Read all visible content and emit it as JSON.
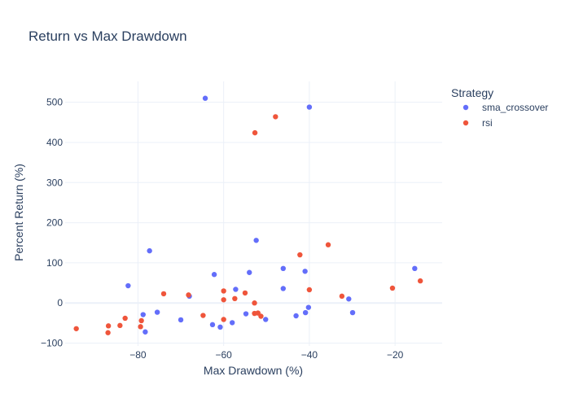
{
  "chart_data": {
    "type": "scatter",
    "title": "Return vs Max Drawdown",
    "xlabel": "Max Drawdown (%)",
    "ylabel": "Percent Return (%)",
    "xlim": [
      -97,
      -9
    ],
    "ylim": [
      -107,
      552
    ],
    "x_ticks": [
      -80,
      -60,
      -40,
      -20
    ],
    "x_tick_labels": [
      "−80",
      "−60",
      "−40",
      "−20"
    ],
    "y_ticks": [
      -100,
      0,
      100,
      200,
      300,
      400,
      500
    ],
    "y_tick_labels": [
      "−100",
      "0",
      "100",
      "200",
      "300",
      "400",
      "500"
    ],
    "grid": true,
    "legend": {
      "title": "Strategy",
      "placement": "top-right"
    },
    "series": [
      {
        "name": "sma_crossover",
        "color": "#636efa",
        "points": [
          {
            "x": -64.3,
            "y": 510
          },
          {
            "x": -40.0,
            "y": 488
          },
          {
            "x": -77.3,
            "y": 130
          },
          {
            "x": -52.4,
            "y": 156
          },
          {
            "x": -82.3,
            "y": 43
          },
          {
            "x": -62.2,
            "y": 71
          },
          {
            "x": -54.0,
            "y": 76
          },
          {
            "x": -46.1,
            "y": 86
          },
          {
            "x": -41.0,
            "y": 79
          },
          {
            "x": -15.4,
            "y": 86
          },
          {
            "x": -46.1,
            "y": 36
          },
          {
            "x": -57.2,
            "y": 34
          },
          {
            "x": -68.0,
            "y": 17
          },
          {
            "x": -75.5,
            "y": -23
          },
          {
            "x": -78.8,
            "y": -29
          },
          {
            "x": -70.0,
            "y": -42
          },
          {
            "x": -62.6,
            "y": -54
          },
          {
            "x": -60.8,
            "y": -60
          },
          {
            "x": -58.0,
            "y": -49
          },
          {
            "x": -54.8,
            "y": -27
          },
          {
            "x": -50.2,
            "y": -41
          },
          {
            "x": -43.1,
            "y": -32
          },
          {
            "x": -40.9,
            "y": -24
          },
          {
            "x": -40.2,
            "y": -11
          },
          {
            "x": -30.8,
            "y": 10
          },
          {
            "x": -29.9,
            "y": -24
          },
          {
            "x": -78.3,
            "y": -72
          }
        ]
      },
      {
        "name": "rsi",
        "color": "#ef553b",
        "points": [
          {
            "x": -52.7,
            "y": 424
          },
          {
            "x": -47.9,
            "y": 464
          },
          {
            "x": -42.2,
            "y": 120
          },
          {
            "x": -35.6,
            "y": 145
          },
          {
            "x": -74.0,
            "y": 23
          },
          {
            "x": -68.2,
            "y": 20
          },
          {
            "x": -60.0,
            "y": 30
          },
          {
            "x": -60.0,
            "y": 8
          },
          {
            "x": -57.4,
            "y": 11
          },
          {
            "x": -55.0,
            "y": 25
          },
          {
            "x": -52.8,
            "y": 0
          },
          {
            "x": -40.0,
            "y": 33
          },
          {
            "x": -32.4,
            "y": 17
          },
          {
            "x": -20.6,
            "y": 37
          },
          {
            "x": -14.1,
            "y": 55
          },
          {
            "x": -64.8,
            "y": -31
          },
          {
            "x": -60.0,
            "y": -41
          },
          {
            "x": -52.8,
            "y": -26
          },
          {
            "x": -52.0,
            "y": -25
          },
          {
            "x": -51.3,
            "y": -33
          },
          {
            "x": -79.2,
            "y": -44
          },
          {
            "x": -79.4,
            "y": -59
          },
          {
            "x": -83.0,
            "y": -38
          },
          {
            "x": -84.2,
            "y": -56
          },
          {
            "x": -86.9,
            "y": -57
          },
          {
            "x": -87.0,
            "y": -74
          },
          {
            "x": -94.4,
            "y": -64
          }
        ]
      }
    ]
  }
}
